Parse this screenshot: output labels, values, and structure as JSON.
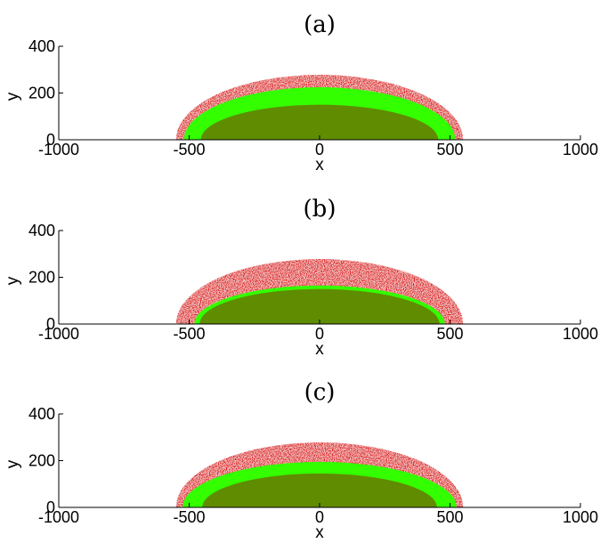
{
  "chart_data": [
    {
      "type": "area",
      "title": "(a)",
      "xlabel": "x",
      "ylabel": "y",
      "xlim": [
        -1000,
        1000
      ],
      "ylim": [
        0,
        400
      ],
      "xticks": [
        "-1000",
        "-500",
        "0",
        "500",
        "1000"
      ],
      "yticks": [
        "0",
        "200",
        "400"
      ],
      "grid": false,
      "colors": {
        "outer": "#e02020",
        "middle": "#33ff00",
        "inner": "#5f8c00"
      },
      "layers": [
        {
          "halfwidth": 550,
          "height": 278
        },
        {
          "halfwidth": 520,
          "height": 225
        },
        {
          "halfwidth": 455,
          "height": 150
        }
      ]
    },
    {
      "type": "area",
      "title": "(b)",
      "xlabel": "x",
      "ylabel": "y",
      "xlim": [
        -1000,
        1000
      ],
      "ylim": [
        0,
        400
      ],
      "xticks": [
        "-1000",
        "-500",
        "0",
        "500",
        "1000"
      ],
      "yticks": [
        "0",
        "200",
        "400"
      ],
      "grid": false,
      "colors": {
        "outer": "#e02020",
        "middle": "#33ff00",
        "inner": "#5f8c00"
      },
      "layers": [
        {
          "halfwidth": 550,
          "height": 278
        },
        {
          "halfwidth": 480,
          "height": 165
        },
        {
          "halfwidth": 460,
          "height": 150
        }
      ]
    },
    {
      "type": "area",
      "title": "(c)",
      "xlabel": "x",
      "ylabel": "y",
      "xlim": [
        -1000,
        1000
      ],
      "ylim": [
        0,
        400
      ],
      "xticks": [
        "-1000",
        "-500",
        "0",
        "500",
        "1000"
      ],
      "yticks": [
        "0",
        "200",
        "400"
      ],
      "grid": false,
      "colors": {
        "outer": "#e02020",
        "middle": "#33ff00",
        "inner": "#5f8c00"
      },
      "layers": [
        {
          "halfwidth": 550,
          "height": 278
        },
        {
          "halfwidth": 525,
          "height": 195
        },
        {
          "halfwidth": 450,
          "height": 145
        }
      ]
    }
  ]
}
